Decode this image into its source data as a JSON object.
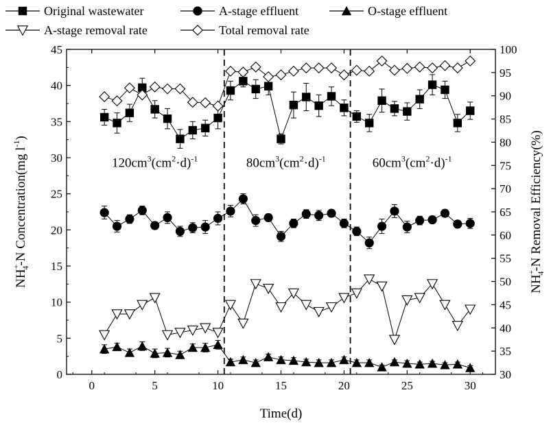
{
  "chart_data": {
    "type": "line",
    "xlabel": "Time(d)",
    "ylabel": {
      "main": "NH",
      "sup": "+",
      "sub": "4",
      "rest": "-N Concentration(mg l",
      "rest_sup": "-1",
      "tail": ")"
    },
    "y2label": {
      "main": "NH",
      "sup": "+",
      "sub": "4",
      "rest": "-N Removal Efficiency(%)"
    },
    "xlim": [
      -2,
      32
    ],
    "ylim": [
      0,
      45
    ],
    "y2lim": [
      30,
      100
    ],
    "x_ticks": [
      "0",
      "5",
      "10",
      "15",
      "20",
      "25",
      "30"
    ],
    "y_ticks": [
      "0",
      "5",
      "10",
      "15",
      "20",
      "25",
      "30",
      "35",
      "40",
      "45"
    ],
    "y2_ticks": [
      "30",
      "35",
      "40",
      "45",
      "50",
      "55",
      "60",
      "65",
      "70",
      "75",
      "80",
      "85",
      "90",
      "95",
      "100"
    ],
    "phase_dividers": [
      10.5,
      20.5
    ],
    "phase_labels": [
      {
        "value": "120",
        "unit": "cm",
        "exp": "3",
        "mid": "(cm",
        "exp2": "2",
        "tail": "·d)",
        "exp3": "-1",
        "x": 5,
        "y": 28.7
      },
      {
        "value": "80",
        "unit": "cm",
        "exp": "3",
        "mid": "(cm",
        "exp2": "2",
        "tail": "·d)",
        "exp3": "-1",
        "x": 15.4,
        "y": 28.7
      },
      {
        "value": "60",
        "unit": "cm",
        "exp": "3",
        "mid": "(cm",
        "exp2": "2",
        "tail": "·d)",
        "exp3": "-1",
        "x": 25.4,
        "y": 28.7
      }
    ],
    "series": [
      {
        "name": "Original wastewater",
        "marker": "square",
        "axis": "left",
        "x": [
          1,
          2,
          3,
          4,
          5,
          6,
          7,
          8,
          9,
          10,
          11,
          12,
          13,
          14,
          15,
          16,
          17,
          18,
          19,
          20,
          21,
          22,
          23,
          24,
          25,
          26,
          27,
          28,
          29,
          30
        ],
        "y": [
          35.6,
          34.8,
          36.2,
          39.7,
          36.7,
          35.4,
          32.6,
          33.8,
          34.1,
          35.5,
          39.3,
          40.6,
          39.5,
          39.9,
          32.6,
          37.3,
          38.4,
          37.2,
          38.5,
          36.9,
          35.7,
          34.8,
          37.9,
          36.8,
          36.4,
          38.1,
          40.1,
          39.4,
          34.8,
          36.5
        ],
        "err": [
          1.1,
          1.4,
          1.2,
          1.3,
          1.2,
          1.4,
          1.3,
          1.2,
          1.1,
          1.5,
          1.3,
          0.8,
          1.3,
          1.2,
          0.7,
          1.8,
          1.9,
          1.5,
          1.3,
          1.1,
          0.8,
          1.2,
          1.6,
          1.0,
          1.2,
          1.3,
          1.4,
          1.2,
          1.2,
          1.2
        ]
      },
      {
        "name": "A-stage effluent",
        "marker": "circle",
        "axis": "left",
        "x": [
          1,
          2,
          3,
          4,
          5,
          6,
          7,
          8,
          9,
          10,
          11,
          12,
          13,
          14,
          15,
          16,
          17,
          18,
          19,
          20,
          21,
          22,
          23,
          24,
          25,
          26,
          27,
          28,
          29,
          30
        ],
        "y": [
          22.4,
          20.5,
          21.5,
          22.7,
          20.6,
          21.7,
          19.8,
          20.3,
          20.4,
          21.6,
          22.6,
          24.3,
          21.3,
          21.7,
          19.1,
          20.9,
          22.2,
          22.0,
          22.3,
          20.9,
          19.8,
          18.2,
          20.5,
          22.6,
          20.4,
          21.3,
          21.4,
          22.3,
          20.8,
          20.9
        ],
        "err": [
          0.9,
          0.8,
          0.6,
          0.6,
          0.5,
          0.8,
          0.7,
          0.7,
          0.9,
          0.9,
          0.8,
          0.7,
          0.8,
          0.5,
          0.7,
          0.6,
          0.6,
          0.7,
          0.5,
          0.6,
          0.6,
          0.8,
          1.0,
          0.9,
          0.8,
          0.6,
          0.5,
          0.5,
          0.5,
          0.7
        ]
      },
      {
        "name": "O-stage effluent",
        "marker": "triangle-up",
        "axis": "left",
        "x": [
          1,
          2,
          3,
          4,
          5,
          6,
          7,
          8,
          9,
          10,
          11,
          12,
          13,
          14,
          15,
          16,
          17,
          18,
          19,
          20,
          21,
          22,
          23,
          24,
          25,
          26,
          27,
          28,
          29,
          30
        ],
        "y": [
          3.5,
          3.8,
          3.0,
          3.9,
          2.9,
          3.0,
          2.7,
          3.7,
          3.7,
          4.1,
          1.7,
          2.0,
          1.6,
          2.4,
          2.0,
          1.9,
          1.7,
          1.6,
          1.6,
          2.0,
          1.6,
          1.6,
          1.0,
          1.7,
          1.5,
          1.4,
          1.5,
          1.3,
          1.4,
          0.9
        ],
        "err": [
          0.6,
          0.5,
          0.5,
          0.6,
          0.6,
          0.6,
          0.5,
          0.5,
          0.6,
          0.6,
          0.4,
          0.4,
          0.4,
          0.4,
          0.4,
          0.4,
          0.4,
          0.4,
          0.4,
          0.4,
          0.4,
          0.4,
          0.3,
          0.3,
          0.4,
          0.3,
          0.3,
          0.3,
          0.3,
          0.3
        ]
      },
      {
        "name": "A-stage removal rate",
        "marker": "triangle-down-open",
        "axis": "right",
        "x": [
          1,
          2,
          3,
          4,
          5,
          6,
          7,
          8,
          9,
          10,
          11,
          12,
          13,
          14,
          15,
          16,
          17,
          18,
          19,
          20,
          21,
          22,
          23,
          24,
          25,
          26,
          27,
          28,
          29,
          30
        ],
        "y": [
          38.5,
          43.0,
          43.0,
          45.0,
          46.5,
          38.5,
          39.0,
          39.5,
          40.0,
          39.0,
          45.0,
          41.0,
          49.5,
          48.5,
          44.5,
          47.5,
          45.0,
          43.5,
          44.5,
          46.5,
          47.5,
          50.5,
          49.0,
          37.5,
          46.0,
          46.5,
          49.5,
          45.0,
          40.5,
          44.0
        ]
      },
      {
        "name": "Total removal rate",
        "marker": "diamond-open",
        "axis": "right",
        "x": [
          1,
          2,
          3,
          4,
          5,
          6,
          7,
          8,
          9,
          10,
          11,
          12,
          13,
          14,
          15,
          16,
          17,
          18,
          19,
          20,
          21,
          22,
          23,
          24,
          25,
          26,
          27,
          28,
          29,
          30
        ],
        "y": [
          89.8,
          88.9,
          91.7,
          90.2,
          91.9,
          91.5,
          91.5,
          88.6,
          88.5,
          87.8,
          95.3,
          95.1,
          96.2,
          94.1,
          94.5,
          95.3,
          96.0,
          96.0,
          96.0,
          94.5,
          95.5,
          95.3,
          97.5,
          95.5,
          95.9,
          96.2,
          96.0,
          96.5,
          96.0,
          97.5
        ]
      }
    ]
  }
}
